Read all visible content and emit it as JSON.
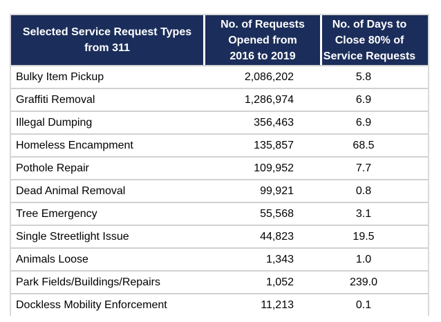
{
  "chart_data": {
    "type": "table",
    "columns": [
      "Selected Service Request Types from 311",
      "No. of Requests Opened from 2016 to 2019",
      "No. of Days to Close 80% of Service Requests"
    ],
    "rows": [
      [
        "Bulky Item Pickup",
        2086202,
        5.8
      ],
      [
        "Graffiti Removal",
        1286974,
        6.9
      ],
      [
        "Illegal Dumping",
        356463,
        6.9
      ],
      [
        "Homeless Encampment",
        135857,
        68.5
      ],
      [
        "Pothole Repair",
        109952,
        7.7
      ],
      [
        "Dead Animal Removal",
        99921,
        0.8
      ],
      [
        "Tree Emergency",
        55568,
        3.1
      ],
      [
        "Single Streetlight Issue",
        44823,
        19.5
      ],
      [
        "Animals Loose",
        1343,
        1.0
      ],
      [
        "Park Fields/Buildings/Repairs",
        1052,
        239.0
      ],
      [
        "Dockless Mobility Enforcement",
        11213,
        0.1
      ]
    ],
    "legend": "none",
    "grid": "horizontal row separators only"
  },
  "table": {
    "columns": [
      {
        "header": "Selected Service Request Types\nfrom 311"
      },
      {
        "header": "No. of Requests\nOpened from\n2016 to 2019"
      },
      {
        "header": "No. of Days to\nClose 80% of\nService Requests"
      }
    ],
    "rows": [
      {
        "type": "Bulky Item Pickup",
        "requests": "2,086,202",
        "days": "5.8"
      },
      {
        "type": "Graffiti Removal",
        "requests": "1,286,974",
        "days": "6.9"
      },
      {
        "type": "Illegal Dumping",
        "requests": "356,463",
        "days": "6.9"
      },
      {
        "type": "Homeless Encampment",
        "requests": "135,857",
        "days": "68.5"
      },
      {
        "type": "Pothole Repair",
        "requests": "109,952",
        "days": "7.7"
      },
      {
        "type": "Dead Animal Removal",
        "requests": "99,921",
        "days": "0.8"
      },
      {
        "type": "Tree Emergency",
        "requests": "55,568",
        "days": "3.1"
      },
      {
        "type": "Single Streetlight Issue",
        "requests": "44,823",
        "days": "19.5"
      },
      {
        "type": "Animals Loose",
        "requests": "1,343",
        "days": "1.0"
      },
      {
        "type": "Park Fields/Buildings/Repairs",
        "requests": "1,052",
        "days": "239.0"
      },
      {
        "type": "Dockless Mobility Enforcement",
        "requests": "11,213",
        "days": "0.1"
      }
    ]
  },
  "colors": {
    "header_bg": "#1B2D5A",
    "header_text": "#FFFFFF",
    "row_separator": "#D1D1D1",
    "outer_border": "#D9D9D9",
    "body_text": "#000000",
    "page_bg": "#FFFFFF"
  }
}
